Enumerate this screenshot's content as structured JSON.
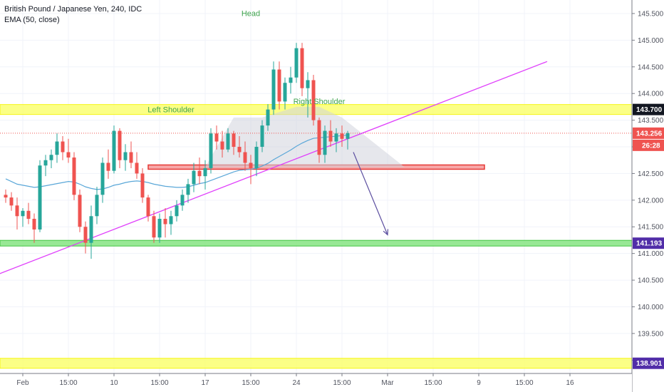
{
  "legend": {
    "symbol_line": "British Pound / Japanese Yen, 240, IDC",
    "indicator_line": "EMA (50, close)"
  },
  "chart_data": {
    "type": "candlestick",
    "symbol": "British Pound / Japanese Yen",
    "interval": "240",
    "source": "IDC",
    "indicator": "EMA (50, close)",
    "ylim": [
      138.75,
      145.7
    ],
    "y_ticks": [
      139.0,
      139.5,
      140.0,
      140.5,
      141.0,
      141.5,
      142.0,
      142.5,
      143.0,
      143.5,
      144.0,
      144.5,
      145.0,
      145.5
    ],
    "y_tick_labels": [
      "139.000",
      "139.500",
      "140.000",
      "140.500",
      "141.000",
      "141.500",
      "142.000",
      "142.500",
      "143.000",
      "143.500",
      "144.000",
      "144.500",
      "145.000",
      "145.500"
    ],
    "x_ticks": [
      {
        "index": -5,
        "label": "15:00"
      },
      {
        "index": 3,
        "label": "Feb"
      },
      {
        "index": 11,
        "label": "15:00"
      },
      {
        "index": 19,
        "label": "10"
      },
      {
        "index": 27,
        "label": "15:00"
      },
      {
        "index": 35,
        "label": "17"
      },
      {
        "index": 43,
        "label": "15:00"
      },
      {
        "index": 51,
        "label": "24"
      },
      {
        "index": 59,
        "label": "15:00"
      },
      {
        "index": 67,
        "label": "Mar"
      },
      {
        "index": 75,
        "label": "15:00"
      },
      {
        "index": 83,
        "label": "9"
      },
      {
        "index": 91,
        "label": "15:00"
      },
      {
        "index": 99,
        "label": "16"
      }
    ],
    "candle_colors": {
      "up": "#26a69a",
      "down": "#ef5350"
    },
    "candles": [
      [
        142.1,
        142.2,
        141.95,
        142.05
      ],
      [
        142.05,
        142.15,
        141.8,
        141.9
      ],
      [
        141.9,
        142.05,
        141.45,
        141.7
      ],
      [
        141.7,
        141.85,
        141.5,
        141.8
      ],
      [
        141.8,
        141.95,
        141.55,
        141.65
      ],
      [
        141.65,
        141.75,
        141.2,
        141.45
      ],
      [
        141.45,
        142.75,
        141.4,
        142.65
      ],
      [
        142.65,
        142.85,
        142.45,
        142.75
      ],
      [
        142.75,
        142.95,
        142.6,
        142.85
      ],
      [
        142.85,
        143.25,
        142.7,
        143.1
      ],
      [
        143.1,
        143.2,
        142.75,
        142.9
      ],
      [
        142.9,
        143.15,
        142.7,
        142.8
      ],
      [
        142.8,
        142.9,
        142.0,
        142.1
      ],
      [
        142.1,
        142.2,
        141.4,
        141.5
      ],
      [
        141.5,
        141.6,
        141.0,
        141.2
      ],
      [
        141.2,
        141.9,
        140.9,
        141.7
      ],
      [
        141.7,
        142.25,
        141.55,
        142.1
      ],
      [
        142.1,
        142.8,
        141.95,
        142.7
      ],
      [
        142.7,
        142.95,
        142.4,
        142.55
      ],
      [
        142.55,
        143.4,
        142.5,
        143.3
      ],
      [
        143.3,
        143.35,
        142.6,
        142.75
      ],
      [
        142.75,
        143.05,
        142.55,
        142.9
      ],
      [
        142.9,
        143.1,
        142.6,
        142.7
      ],
      [
        142.7,
        142.9,
        142.4,
        142.5
      ],
      [
        142.5,
        142.6,
        141.95,
        142.05
      ],
      [
        142.05,
        142.1,
        141.6,
        141.7
      ],
      [
        141.7,
        141.8,
        141.2,
        141.3
      ],
      [
        141.3,
        141.75,
        141.2,
        141.65
      ],
      [
        141.65,
        141.85,
        141.3,
        141.55
      ],
      [
        141.55,
        141.8,
        141.35,
        141.7
      ],
      [
        141.7,
        142.0,
        141.6,
        141.9
      ],
      [
        141.9,
        142.2,
        141.8,
        142.1
      ],
      [
        142.1,
        142.4,
        141.95,
        142.3
      ],
      [
        142.3,
        142.7,
        142.15,
        142.55
      ],
      [
        142.55,
        142.8,
        142.3,
        142.45
      ],
      [
        142.45,
        142.75,
        142.2,
        142.6
      ],
      [
        142.6,
        143.35,
        142.5,
        143.25
      ],
      [
        143.25,
        143.4,
        142.95,
        143.1
      ],
      [
        143.1,
        143.3,
        142.8,
        142.95
      ],
      [
        142.95,
        143.35,
        142.9,
        143.25
      ],
      [
        143.25,
        143.3,
        142.85,
        143.0
      ],
      [
        143.0,
        143.2,
        142.8,
        142.9
      ],
      [
        142.9,
        143.1,
        142.55,
        142.7
      ],
      [
        142.7,
        142.85,
        142.3,
        142.6
      ],
      [
        142.6,
        143.1,
        142.45,
        143.0
      ],
      [
        143.0,
        143.5,
        142.9,
        143.4
      ],
      [
        143.4,
        143.8,
        143.3,
        143.7
      ],
      [
        143.7,
        144.6,
        143.6,
        144.45
      ],
      [
        144.45,
        144.6,
        143.7,
        143.85
      ],
      [
        143.85,
        144.3,
        143.7,
        144.2
      ],
      [
        144.2,
        144.5,
        144.0,
        144.3
      ],
      [
        144.3,
        144.95,
        144.2,
        144.85
      ],
      [
        144.85,
        144.95,
        143.95,
        144.1
      ],
      [
        144.1,
        144.4,
        143.55,
        144.25
      ],
      [
        144.25,
        144.35,
        143.4,
        143.5
      ],
      [
        143.5,
        143.55,
        142.7,
        142.85
      ],
      [
        142.85,
        143.4,
        142.7,
        143.3
      ],
      [
        143.3,
        143.5,
        143.0,
        143.1
      ],
      [
        143.1,
        143.35,
        142.9,
        143.25
      ],
      [
        143.25,
        143.4,
        143.0,
        143.15
      ],
      [
        143.15,
        143.3,
        142.95,
        143.256
      ]
    ],
    "ema": [
      142.4,
      142.35,
      142.3,
      142.28,
      142.26,
      142.24,
      142.25,
      142.27,
      142.29,
      142.31,
      142.33,
      142.35,
      142.34,
      142.3,
      142.25,
      142.22,
      142.2,
      142.21,
      142.24,
      142.28,
      142.3,
      142.33,
      142.35,
      142.36,
      142.35,
      142.33,
      142.3,
      142.28,
      142.26,
      142.25,
      142.24,
      142.24,
      142.25,
      142.28,
      142.31,
      142.33,
      142.37,
      142.41,
      142.45,
      142.49,
      142.53,
      142.56,
      142.57,
      142.58,
      142.6,
      142.64,
      142.69,
      142.76,
      142.82,
      142.88,
      142.94,
      143.01,
      143.07,
      143.12,
      143.16,
      143.17,
      143.18,
      143.19,
      143.2,
      143.21,
      143.22
    ],
    "levels": [
      {
        "price": 143.7,
        "label": "143.700",
        "style": "yellow-band"
      },
      {
        "price": 141.193,
        "label": "141.193",
        "style": "green-band"
      },
      {
        "price": 138.901,
        "label": "138.901",
        "style": "yellow-band"
      },
      {
        "price": 142.62,
        "style": "red-neckline"
      }
    ],
    "trendline": [
      {
        "index": -4,
        "price": 140.5
      },
      {
        "index": 95,
        "price": 144.6
      }
    ],
    "last_price": {
      "price": 143.256,
      "label": "143.256",
      "countdown": "26:28"
    },
    "projection_arrow": {
      "from": {
        "index": 61,
        "price": 142.9
      },
      "to": {
        "index": 67,
        "price": 141.35
      }
    },
    "pattern": {
      "type": "head-and-shoulders",
      "labels": [
        {
          "text": "Left Shoulder",
          "index": 29,
          "price": 143.65
        },
        {
          "text": "Head",
          "index": 43,
          "price": 145.45
        },
        {
          "text": "Right Shoulder",
          "index": 55,
          "price": 143.8
        }
      ]
    }
  }
}
